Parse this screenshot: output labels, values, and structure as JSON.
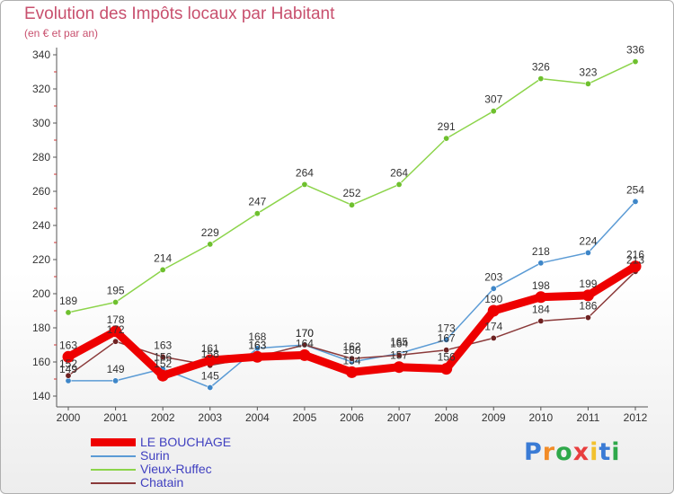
{
  "header": {
    "title": "Evolution des Impôts locaux par Habitant",
    "subtitle": "(en € et par an)"
  },
  "logo": {
    "letters": [
      "P",
      "r",
      "o",
      "x",
      "i",
      "t",
      "i"
    ],
    "colors": [
      "#3a7bd5",
      "#f28c28",
      "#2ea84a",
      "#e83e3e",
      "#f2c12e",
      "#3a7bd5",
      "#2ea84a"
    ]
  },
  "chart_data": {
    "type": "line",
    "title": "Evolution des Impôts locaux par Habitant",
    "subtitle": "(en € et par an)",
    "xlabel": "",
    "ylabel": "",
    "categories": [
      "2000",
      "2001",
      "2002",
      "2003",
      "2004",
      "2005",
      "2006",
      "2007",
      "2008",
      "2009",
      "2010",
      "2011",
      "2012"
    ],
    "ylim": [
      140,
      340
    ],
    "yticks": [
      140,
      160,
      180,
      200,
      220,
      240,
      260,
      280,
      300,
      320,
      340
    ],
    "grid": false,
    "legend_position": "bottom-left",
    "series": [
      {
        "name": "Vieux-Ruffec",
        "color": "#8cd44a",
        "dot": "#6ec02e",
        "width": 1.5,
        "values": [
          189,
          195,
          214,
          229,
          247,
          264,
          252,
          264,
          291,
          307,
          326,
          323,
          336
        ]
      },
      {
        "name": "Surin",
        "color": "#5b9bd5",
        "dot": "#3e86c8",
        "width": 1.5,
        "values": [
          149,
          149,
          156,
          145,
          168,
          170,
          160,
          165,
          173,
          203,
          218,
          224,
          254
        ]
      },
      {
        "name": "Chatain",
        "color": "#8b3a3a",
        "dot": "#6e2222",
        "width": 1.5,
        "values": [
          152,
          172,
          163,
          158,
          163,
          170,
          162,
          164,
          167,
          174,
          184,
          186,
          213
        ]
      },
      {
        "name": "LE BOUCHAGE",
        "color": "#ee0000",
        "dot": "#ee0000",
        "width": 9,
        "values": [
          163,
          178,
          152,
          161,
          163,
          164,
          154,
          157,
          156,
          190,
          198,
          199,
          216
        ]
      }
    ],
    "data_labels": {
      "Vieux-Ruffec": [
        "189",
        "195",
        "214",
        "229",
        "247",
        "264",
        "252",
        "264",
        "291",
        "307",
        "326",
        "323",
        "336"
      ],
      "Surin": [
        "149",
        "149",
        "156",
        "145",
        "168",
        "170",
        "160",
        "165",
        "173",
        "203",
        "218",
        "224",
        "254"
      ],
      "Chatain": [
        "152",
        "172",
        "163",
        "158",
        "163",
        "170",
        "162",
        "164",
        "167",
        "174",
        "184",
        "186",
        "213"
      ],
      "LE BOUCHAGE": [
        "163",
        "178",
        "152",
        "161",
        "163",
        "164",
        "154",
        "157",
        "156",
        "190",
        "198",
        "199",
        "216"
      ]
    }
  },
  "legend": {
    "items": [
      {
        "label": "LE BOUCHAGE",
        "color": "#ee0000",
        "text_color": "#4040c0"
      },
      {
        "label": "Surin",
        "color": "#5b9bd5",
        "text_color": "#4040c0"
      },
      {
        "label": "Vieux-Ruffec",
        "color": "#8cd44a",
        "text_color": "#4040c0"
      },
      {
        "label": "Chatain",
        "color": "#8b3a3a",
        "text_color": "#4040c0"
      }
    ]
  }
}
